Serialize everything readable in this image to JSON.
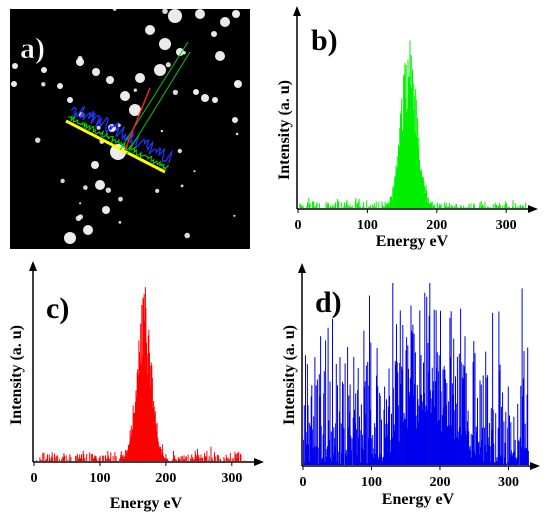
{
  "panels": {
    "a": {
      "label": "a)"
    },
    "b": {
      "label": "b)"
    },
    "c": {
      "label": "c)"
    },
    "d": {
      "label": "d)"
    }
  },
  "chart_data": [
    {
      "panel": "b",
      "type": "bar",
      "color": "#00ee00",
      "xlabel": "Energy eV",
      "ylabel": "Intensity (a. u)",
      "xlim": [
        0,
        330
      ],
      "ylim": [
        0,
        1
      ],
      "xticks": [
        0,
        100,
        200,
        300
      ],
      "peak": {
        "center": 160,
        "width": 11,
        "height": 0.96,
        "noise": 0.03,
        "background": 0.02
      }
    },
    {
      "panel": "c",
      "type": "bar",
      "color": "#ff0000",
      "xlabel": "Energy eV",
      "ylabel": "Intensity (a. u)",
      "xlim": [
        0,
        320
      ],
      "ylim": [
        0,
        1
      ],
      "xticks": [
        0,
        100,
        200,
        300
      ],
      "peak": {
        "center": 167,
        "width": 11,
        "height": 0.95,
        "noise": 0.04,
        "background": 0.03
      }
    },
    {
      "panel": "d",
      "type": "bar",
      "color": "#0000ee",
      "xlabel": "Energy eV",
      "ylabel": "Intensity (a. u)",
      "xlim": [
        0,
        330
      ],
      "ylim": [
        0,
        1
      ],
      "xticks": [
        0,
        100,
        200,
        300
      ],
      "peak": {
        "center": 185,
        "width": 30,
        "height": 0.35,
        "noise": 0.35,
        "background": 0.42
      }
    }
  ]
}
